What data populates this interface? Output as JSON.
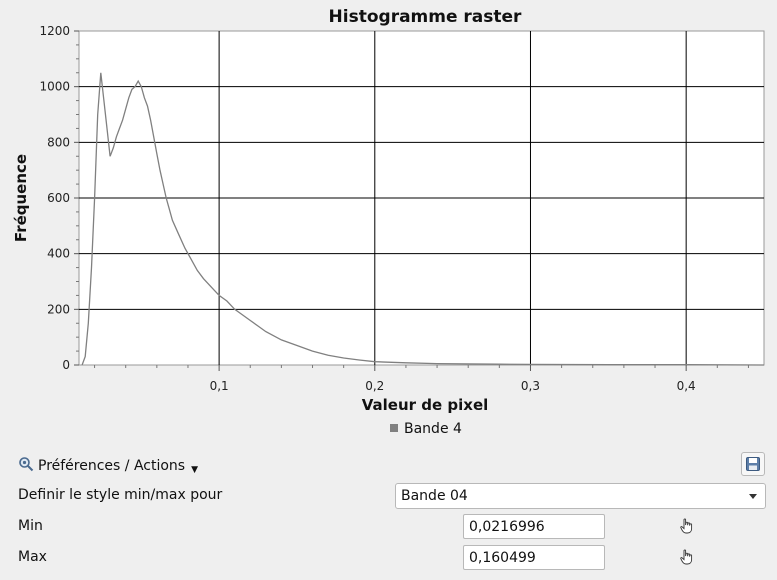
{
  "chart_data": {
    "type": "line",
    "title": "Histogramme raster",
    "xlabel": "Valeur de pixel",
    "ylabel": "Fréquence",
    "xlim": [
      0.01,
      0.45
    ],
    "ylim": [
      0,
      1200
    ],
    "xticks": [
      {
        "value": 0.1,
        "label": "0,1"
      },
      {
        "value": 0.2,
        "label": "0,2"
      },
      {
        "value": 0.3,
        "label": "0,3"
      },
      {
        "value": 0.4,
        "label": "0,4"
      }
    ],
    "yticks": [
      {
        "value": 0,
        "label": "0"
      },
      {
        "value": 200,
        "label": "200"
      },
      {
        "value": 400,
        "label": "400"
      },
      {
        "value": 600,
        "label": "600"
      },
      {
        "value": 800,
        "label": "800"
      },
      {
        "value": 1000,
        "label": "1000"
      },
      {
        "value": 1200,
        "label": "1200"
      }
    ],
    "grid": true,
    "legend_position": "bottom-center",
    "series": [
      {
        "name": "Bande 4",
        "color": "#808080",
        "x": [
          0.012,
          0.014,
          0.016,
          0.018,
          0.02,
          0.022,
          0.024,
          0.026,
          0.028,
          0.03,
          0.032,
          0.034,
          0.036,
          0.038,
          0.04,
          0.042,
          0.044,
          0.046,
          0.048,
          0.05,
          0.052,
          0.054,
          0.056,
          0.058,
          0.06,
          0.062,
          0.064,
          0.066,
          0.068,
          0.07,
          0.074,
          0.078,
          0.082,
          0.086,
          0.09,
          0.095,
          0.1,
          0.105,
          0.11,
          0.115,
          0.12,
          0.125,
          0.13,
          0.14,
          0.15,
          0.16,
          0.17,
          0.18,
          0.19,
          0.2,
          0.22,
          0.24,
          0.26,
          0.28,
          0.3,
          0.35,
          0.4,
          0.45
        ],
        "y": [
          0,
          30,
          150,
          350,
          600,
          900,
          1050,
          950,
          850,
          750,
          780,
          820,
          850,
          880,
          920,
          960,
          990,
          1000,
          1020,
          1000,
          960,
          930,
          880,
          820,
          760,
          700,
          650,
          600,
          560,
          520,
          470,
          420,
          380,
          340,
          310,
          280,
          250,
          230,
          200,
          180,
          160,
          140,
          120,
          90,
          70,
          50,
          35,
          25,
          18,
          12,
          8,
          5,
          4,
          3,
          2,
          1,
          1,
          0
        ]
      }
    ]
  },
  "legend": {
    "items": [
      {
        "label": "Bande 4",
        "color": "#808080"
      }
    ]
  },
  "controls": {
    "preferences_label": "Préférences / Actions",
    "define_style_label": "Definir le style min/max pour",
    "band_select_value": "Bande 04",
    "min_label": "Min",
    "min_value": "0,0216996",
    "max_label": "Max",
    "max_value": "0,160499"
  },
  "icons": {
    "preferences": "magnifier-settings-icon",
    "save": "floppy-save-icon",
    "pick": "hand-pointer-icon"
  }
}
